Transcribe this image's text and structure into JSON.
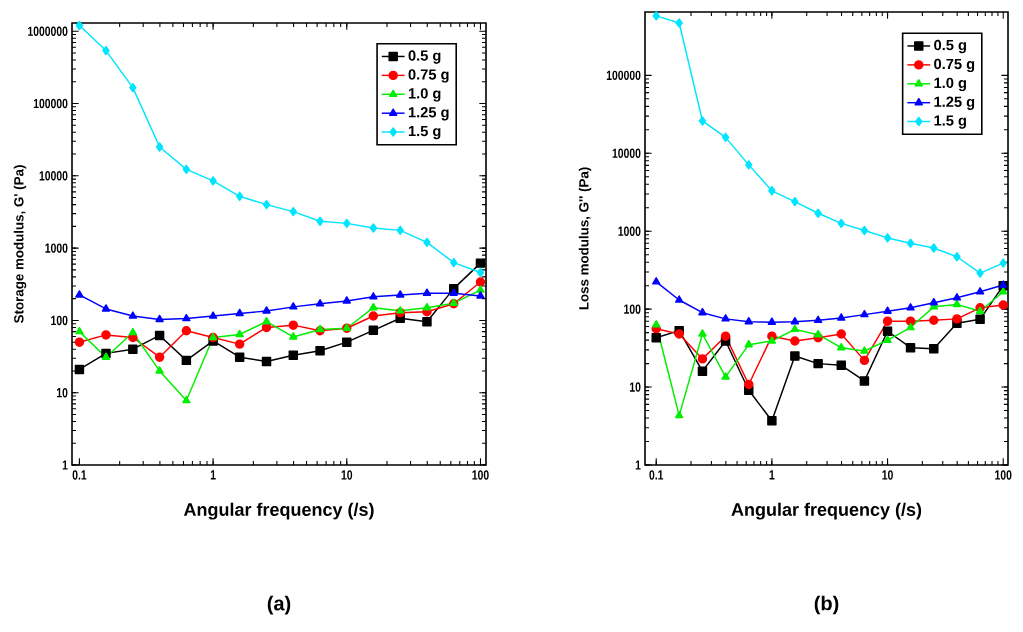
{
  "chart_data": [
    {
      "type": "line",
      "xlabel": "Angular frequency (/s)",
      "ylabel": "Storage modulus, G' (Pa)",
      "annotations": [
        "(a)"
      ],
      "log": "xy",
      "grid": false,
      "legend": "top right",
      "x": [
        0.1,
        0.158,
        0.251,
        0.398,
        0.631,
        1,
        1.58,
        2.51,
        3.98,
        6.31,
        10,
        15.8,
        25.1,
        39.8,
        63.1,
        100
      ],
      "xlim": [
        0.088,
        110
      ],
      "xticks": [
        0.1,
        1,
        10,
        100
      ],
      "ylim": [
        1,
        1300000
      ],
      "yticks": [
        1,
        10,
        100,
        1000,
        10000,
        100000,
        1000000
      ],
      "series": [
        {
          "name": "0.5 g",
          "color": "#000000",
          "marker": "square",
          "values": [
            21,
            35,
            40,
            62,
            28,
            52,
            31,
            27,
            33,
            38,
            50,
            73,
            107,
            96,
            275,
            620
          ]
        },
        {
          "name": "0.75 g",
          "color": "#ff0000",
          "marker": "circle",
          "values": [
            50,
            63,
            58,
            31,
            72,
            58,
            47,
            80,
            86,
            72,
            78,
            115,
            128,
            132,
            170,
            340
          ]
        },
        {
          "name": "1.0 g",
          "color": "#00ee00",
          "marker": "triangle",
          "values": [
            70,
            31,
            68,
            20,
            7.8,
            58,
            64,
            96,
            59,
            75,
            78,
            150,
            136,
            150,
            173,
            263
          ]
        },
        {
          "name": "1.25 g",
          "color": "#0000ff",
          "marker": "triangle-down",
          "values": [
            225,
            144,
            115,
            103,
            106,
            115,
            125,
            135,
            154,
            170,
            186,
            212,
            225,
            238,
            238,
            218
          ]
        },
        {
          "name": "1.5 g",
          "color": "#00e5ff",
          "marker": "diamond",
          "values": [
            1200000,
            540000,
            166000,
            25000,
            12300,
            8500,
            5200,
            4000,
            3200,
            2350,
            2200,
            1900,
            1760,
            1200,
            630,
            460
          ]
        }
      ]
    },
    {
      "type": "line",
      "xlabel": "Angular frequency (/s)",
      "ylabel": "Loss modulus, G'' (Pa)",
      "annotations": [
        "(b)"
      ],
      "log": "xy",
      "grid": false,
      "legend": "top right",
      "x": [
        0.1,
        0.158,
        0.251,
        0.398,
        0.631,
        1,
        1.58,
        2.51,
        3.98,
        6.31,
        10,
        15.8,
        25.1,
        39.8,
        63.1,
        100
      ],
      "xlim": [
        0.08,
        110
      ],
      "xticks": [
        0.1,
        1,
        10,
        100
      ],
      "ylim": [
        1,
        650000
      ],
      "yticks": [
        1,
        10,
        100,
        1000,
        10000,
        100000
      ],
      "series": [
        {
          "name": "0.5 g",
          "color": "#000000",
          "marker": "square",
          "values": [
            43,
            53,
            16,
            39,
            9.1,
            3.7,
            25,
            20,
            19,
            12,
            52,
            32,
            31,
            66,
            74,
            200
          ]
        },
        {
          "name": "0.75 g",
          "color": "#ff0000",
          "marker": "circle",
          "values": [
            56,
            48,
            23,
            45,
            10.8,
            45,
            39,
            43,
            48,
            22,
            70,
            70,
            72,
            75,
            104,
            113
          ]
        },
        {
          "name": "1.0 g",
          "color": "#00ee00",
          "marker": "triangle",
          "values": [
            63,
            4.3,
            48,
            13.5,
            35,
            39,
            55,
            47,
            32,
            29,
            40,
            58,
            107,
            115,
            94,
            167
          ]
        },
        {
          "name": "1.25 g",
          "color": "#0000ff",
          "marker": "triangle-down",
          "values": [
            224,
            131,
            90,
            75,
            69,
            68,
            69,
            72,
            77,
            85,
            94,
            104,
            121,
            140,
            167,
            204
          ]
        },
        {
          "name": "1.5 g",
          "color": "#00e5ff",
          "marker": "diamond",
          "values": [
            580000,
            470000,
            26000,
            16000,
            7100,
            3300,
            2400,
            1700,
            1260,
            1020,
            820,
            700,
            610,
            470,
            290,
            390
          ]
        }
      ]
    }
  ]
}
